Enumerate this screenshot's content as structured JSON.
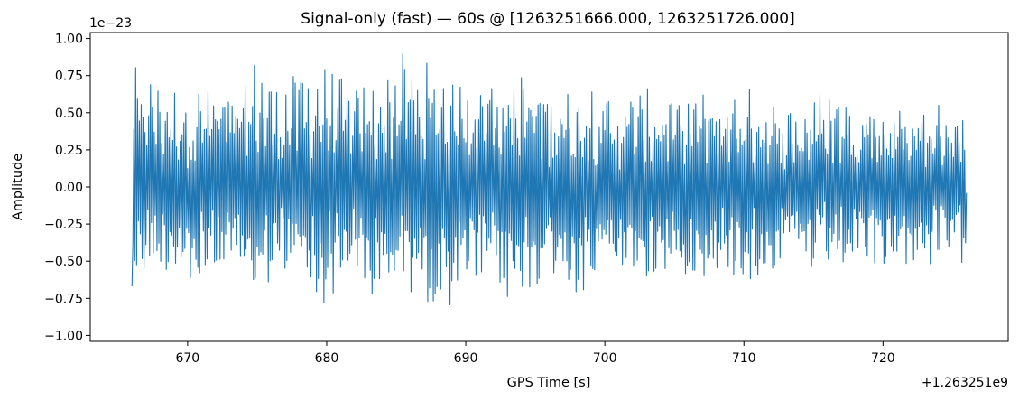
{
  "chart_data": {
    "type": "line",
    "title": "Signal-only (fast) — 60s @ [1263251666.000, 1263251726.000]",
    "xlabel": "GPS Time [s]",
    "ylabel": "Amplitude",
    "x_offset_label": "+1.263251e9",
    "y_scale_label": "1e−23",
    "xlim": [
      663,
      729
    ],
    "ylim": [
      -1.04,
      1.04
    ],
    "x_ticks": [
      670,
      680,
      690,
      700,
      710,
      720
    ],
    "x_tick_labels": [
      "670",
      "680",
      "690",
      "700",
      "710",
      "720"
    ],
    "y_ticks": [
      -1.0,
      -0.75,
      -0.5,
      -0.25,
      0.0,
      0.25,
      0.5,
      0.75,
      1.0
    ],
    "y_tick_labels": [
      "−1.00",
      "−0.75",
      "−0.50",
      "−0.25",
      "0.00",
      "0.25",
      "0.50",
      "0.75",
      "1.00"
    ],
    "grid": false,
    "series": [
      {
        "color": "#1f77b4",
        "x_start": 666.0,
        "x_end": 726.0,
        "envelope_min": [
          -0.67,
          -0.58,
          -0.6,
          -0.8,
          -0.62,
          -0.65,
          -0.81,
          -0.62,
          -0.66,
          -0.89,
          -0.64,
          -0.65,
          -0.93,
          -0.63,
          -0.87,
          -0.89,
          -0.72,
          -0.71,
          -0.85,
          -0.76,
          -0.67,
          -0.72,
          -0.77,
          -0.57,
          -0.68,
          -0.66,
          -0.63,
          -0.67,
          -0.69,
          -0.6,
          -0.7,
          -0.55,
          -0.54,
          -0.67,
          -0.59,
          -0.59,
          -0.56,
          -0.6,
          -0.55,
          -0.55,
          -0.55
        ],
        "envelope_max": [
          0.81,
          0.79,
          0.7,
          0.67,
          0.72,
          0.68,
          0.89,
          0.69,
          0.83,
          0.84,
          0.76,
          0.7,
          0.77,
          0.93,
          0.85,
          0.82,
          0.8,
          0.84,
          0.81,
          0.78,
          0.72,
          0.68,
          0.74,
          0.64,
          0.67,
          0.66,
          0.67,
          0.68,
          0.63,
          0.68,
          0.67,
          0.56,
          0.56,
          0.67,
          0.68,
          0.7,
          0.56,
          0.6,
          0.57,
          0.58,
          0.55
        ],
        "first_value": -0.67,
        "last_value": -0.04
      }
    ]
  }
}
